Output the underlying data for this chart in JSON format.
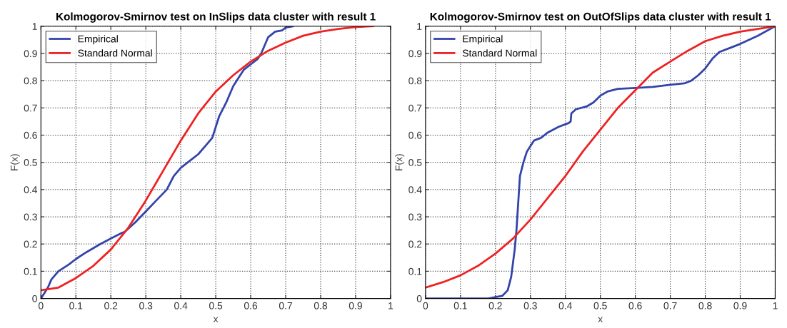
{
  "chart_data": [
    {
      "type": "line",
      "title": "Kolmogorov-Smirnov test on InSlips data cluster with result 1",
      "xlabel": "x",
      "ylabel": "F(x)",
      "xlim": [
        0,
        1
      ],
      "ylim": [
        0,
        1
      ],
      "xticks": [
        0,
        0.1,
        0.2,
        0.3,
        0.4,
        0.5,
        0.6,
        0.7,
        0.8,
        0.9,
        1
      ],
      "yticks": [
        0,
        0.1,
        0.2,
        0.3,
        0.4,
        0.5,
        0.6,
        0.7,
        0.8,
        0.9,
        1
      ],
      "grid": true,
      "legend": "top left",
      "line_style": "solid",
      "series": [
        {
          "name": "Empirical",
          "color": "#3344aa",
          "x": [
            0,
            0.01,
            0.02,
            0.03,
            0.05,
            0.08,
            0.1,
            0.13,
            0.17,
            0.2,
            0.23,
            0.24,
            0.27,
            0.3,
            0.33,
            0.36,
            0.38,
            0.4,
            0.43,
            0.45,
            0.47,
            0.49,
            0.5,
            0.51,
            0.53,
            0.55,
            0.57,
            0.58,
            0.6,
            0.62,
            0.63,
            0.64,
            0.65,
            0.67,
            0.69,
            0.7,
            0.72
          ],
          "values": [
            0,
            0.02,
            0.04,
            0.07,
            0.1,
            0.125,
            0.145,
            0.17,
            0.2,
            0.22,
            0.24,
            0.245,
            0.28,
            0.32,
            0.36,
            0.4,
            0.45,
            0.48,
            0.51,
            0.53,
            0.56,
            0.59,
            0.63,
            0.67,
            0.72,
            0.78,
            0.82,
            0.84,
            0.86,
            0.88,
            0.9,
            0.93,
            0.96,
            0.98,
            0.985,
            0.995,
            1.0
          ]
        },
        {
          "name": "Standard Normal",
          "color": "#ee2222",
          "x": [
            0,
            0.05,
            0.1,
            0.15,
            0.2,
            0.25,
            0.3,
            0.35,
            0.4,
            0.45,
            0.5,
            0.55,
            0.6,
            0.65,
            0.7,
            0.75,
            0.8,
            0.85,
            0.9,
            0.95
          ],
          "values": [
            0.03,
            0.04,
            0.075,
            0.12,
            0.18,
            0.26,
            0.36,
            0.47,
            0.58,
            0.68,
            0.76,
            0.82,
            0.87,
            0.91,
            0.94,
            0.965,
            0.98,
            0.99,
            0.997,
            1.0
          ]
        }
      ]
    },
    {
      "type": "line",
      "title": "Kolmogorov-Smirnov test on OutOfSlips data cluster with result 1",
      "xlabel": "x",
      "ylabel": "F(x)",
      "xlim": [
        0,
        1
      ],
      "ylim": [
        0,
        1
      ],
      "xticks": [
        0,
        0.1,
        0.2,
        0.3,
        0.4,
        0.5,
        0.6,
        0.7,
        0.8,
        0.9,
        1
      ],
      "yticks": [
        0,
        0.1,
        0.2,
        0.3,
        0.4,
        0.5,
        0.6,
        0.7,
        0.8,
        0.9,
        1
      ],
      "grid": true,
      "legend": "top left",
      "line_style": "solid",
      "series": [
        {
          "name": "Empirical",
          "color": "#3344aa",
          "x": [
            0,
            0.18,
            0.2,
            0.22,
            0.235,
            0.245,
            0.255,
            0.26,
            0.265,
            0.27,
            0.28,
            0.29,
            0.31,
            0.33,
            0.35,
            0.38,
            0.41,
            0.415,
            0.417,
            0.43,
            0.46,
            0.48,
            0.5,
            0.52,
            0.55,
            0.6,
            0.65,
            0.7,
            0.74,
            0.76,
            0.78,
            0.8,
            0.82,
            0.84,
            0.87,
            0.9,
            0.95,
            1.0
          ],
          "values": [
            0,
            0,
            0.005,
            0.01,
            0.03,
            0.08,
            0.18,
            0.25,
            0.35,
            0.45,
            0.5,
            0.54,
            0.58,
            0.59,
            0.61,
            0.63,
            0.645,
            0.65,
            0.68,
            0.695,
            0.705,
            0.72,
            0.745,
            0.76,
            0.77,
            0.773,
            0.777,
            0.785,
            0.79,
            0.8,
            0.82,
            0.845,
            0.88,
            0.905,
            0.92,
            0.935,
            0.965,
            1.0
          ]
        },
        {
          "name": "Standard Normal",
          "color": "#ee2222",
          "x": [
            0,
            0.05,
            0.1,
            0.15,
            0.2,
            0.25,
            0.3,
            0.35,
            0.4,
            0.45,
            0.5,
            0.55,
            0.6,
            0.65,
            0.7,
            0.75,
            0.8,
            0.85,
            0.9,
            0.95,
            1.0
          ],
          "values": [
            0.04,
            0.06,
            0.085,
            0.12,
            0.165,
            0.22,
            0.29,
            0.37,
            0.45,
            0.54,
            0.62,
            0.7,
            0.765,
            0.83,
            0.87,
            0.91,
            0.945,
            0.965,
            0.98,
            0.99,
            1.0
          ]
        }
      ]
    }
  ]
}
